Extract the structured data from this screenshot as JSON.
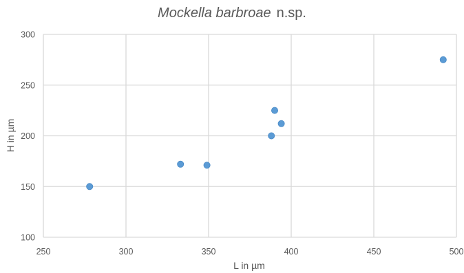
{
  "chart_data": {
    "type": "scatter",
    "title": {
      "italic": "Mockella barbroae",
      "suffix": "n.sp."
    },
    "xlabel": "L in µm",
    "ylabel": "H in µm",
    "xlim": [
      250,
      500
    ],
    "ylim": [
      100,
      300
    ],
    "x_ticks": [
      "250",
      "300",
      "350",
      "400",
      "450",
      "500"
    ],
    "y_ticks": [
      "100",
      "150",
      "200",
      "250",
      "300"
    ],
    "grid": true,
    "legend": "none",
    "marker_color": "#5b9bd5",
    "points": [
      {
        "x": 278,
        "y": 150
      },
      {
        "x": 333,
        "y": 172
      },
      {
        "x": 349,
        "y": 171
      },
      {
        "x": 388,
        "y": 200
      },
      {
        "x": 390,
        "y": 225
      },
      {
        "x": 394,
        "y": 212
      },
      {
        "x": 492,
        "y": 275
      }
    ]
  }
}
